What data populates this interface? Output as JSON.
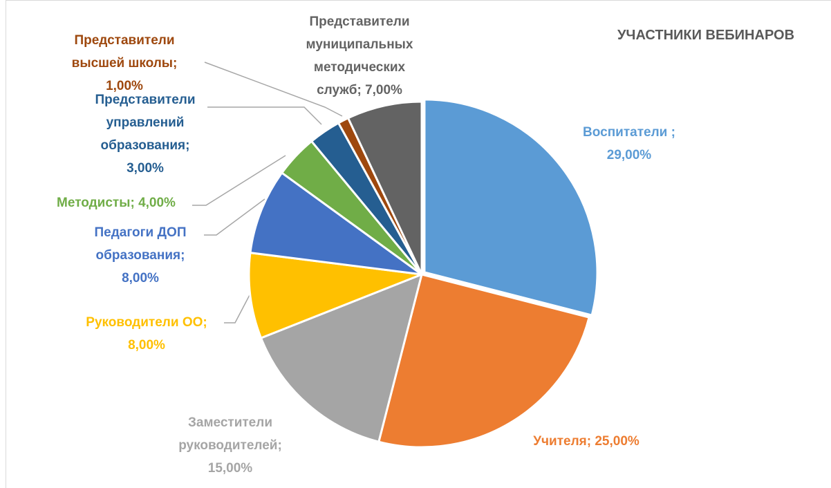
{
  "chart_data": {
    "type": "pie",
    "title": "УЧАСТНИКИ ВЕБИНАРОВ",
    "categories": [
      "Воспитатели ;",
      "Учителя;",
      "Заместители руководителей;",
      "Руководители ОО;",
      "Педагоги ДОП образования;",
      "Методисты;",
      "Представители управлений образования;",
      "Представители высшей школы;",
      "Представители муниципальных методических служб;"
    ],
    "values": [
      29,
      25,
      15,
      8,
      8,
      4,
      3,
      1,
      7
    ],
    "value_labels": [
      "29,00%",
      "25,00%",
      "15,00%",
      "8,00%",
      "8,00%",
      "4,00%",
      "3,00%",
      "1,00%",
      "7,00%"
    ],
    "colors": [
      "#5B9BD5",
      "#ED7D31",
      "#A5A5A5",
      "#FFC000",
      "#4472C4",
      "#70AD47",
      "#255E91",
      "#9E480E",
      "#636363"
    ]
  }
}
